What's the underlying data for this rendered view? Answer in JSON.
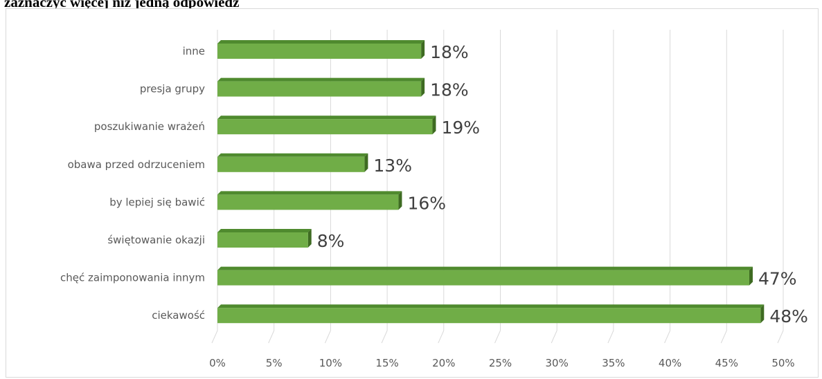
{
  "heading": "zaznaczyć więcej niż jedną odpowiedź",
  "chart_data": {
    "type": "bar",
    "orientation": "horizontal",
    "title": "",
    "xlabel": "",
    "ylabel": "",
    "categories": [
      "inne",
      "presja grupy",
      "poszukiwanie wrażeń",
      "obawa przed odrzuceniem",
      "by lepiej się bawić",
      "świętowanie okazji",
      "chęć zaimponowania innym",
      "ciekawość"
    ],
    "values": [
      18,
      18,
      19,
      13,
      16,
      8,
      47,
      48
    ],
    "data_labels": [
      "18%",
      "18%",
      "19%",
      "13%",
      "16%",
      "8%",
      "47%",
      "48%"
    ],
    "xlim": [
      0,
      50
    ],
    "x_ticks": [
      0,
      5,
      10,
      15,
      20,
      25,
      30,
      35,
      40,
      45,
      50
    ],
    "x_tick_labels": [
      "0%",
      "5%",
      "10%",
      "15%",
      "20%",
      "25%",
      "30%",
      "35%",
      "40%",
      "45%",
      "50%"
    ],
    "grid": true,
    "legend": "none",
    "bar_color": "#70ad47",
    "bar_top_color": "#4f8a2e",
    "bar_side_color": "#3e6b22"
  }
}
